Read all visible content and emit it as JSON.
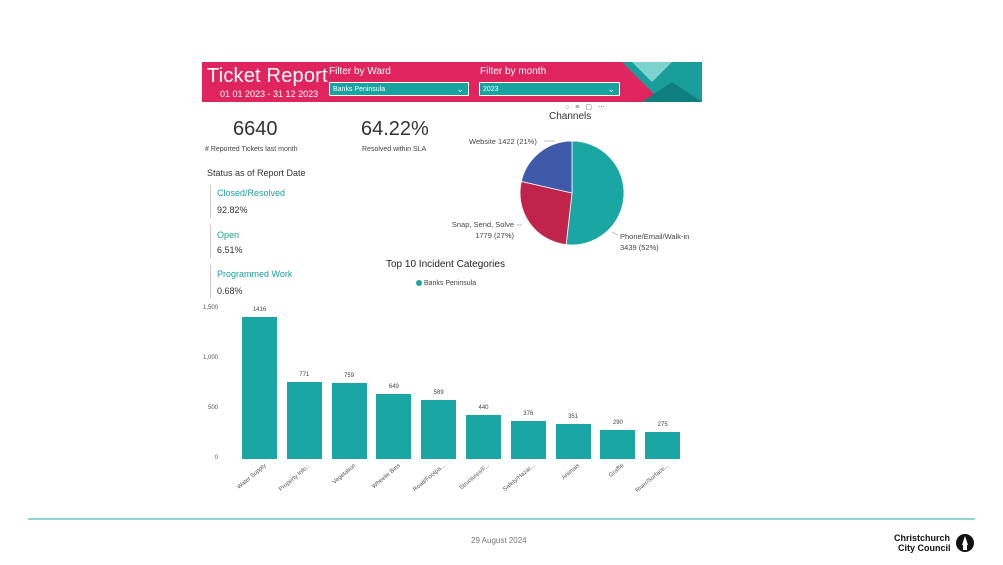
{
  "header": {
    "title": "Ticket Report",
    "date_range": "01 01 2023 - 31 12 2023",
    "filter_ward_label": "Filter by Ward",
    "filter_ward_value": "Banks Peninsula",
    "filter_month_label": "Filter by month",
    "filter_month_value": "2023"
  },
  "kpis": {
    "reported": {
      "value": "6640",
      "caption": "# Reported Tickets last month"
    },
    "sla": {
      "value": "64.22%",
      "caption": "Resolved within SLA"
    }
  },
  "status": {
    "heading": "Status as of Report Date",
    "items": [
      {
        "label": "Closed/Resolved",
        "value": "92.82%"
      },
      {
        "label": "Open",
        "value": "6.51%"
      },
      {
        "label": "Programmed Work",
        "value": "0.68%"
      }
    ]
  },
  "channels": {
    "title": "Channels",
    "labels": {
      "website": "Website 1422 (21%)",
      "snap_line1": "Snap, Send, Solve",
      "snap_line2": "1779 (27%)",
      "phone_line1": "Phone/Email/Walk-in",
      "phone_line2": "3439 (52%)"
    }
  },
  "chart_data": [
    {
      "type": "pie",
      "title": "Channels",
      "slices": [
        {
          "name": "Phone/Email/Walk-in",
          "value": 3439,
          "percent": 52,
          "color": "#1aa6a3"
        },
        {
          "name": "Snap, Send, Solve",
          "value": 1779,
          "percent": 27,
          "color": "#c0244a"
        },
        {
          "name": "Website",
          "value": 1422,
          "percent": 21,
          "color": "#3f5aa8"
        }
      ]
    },
    {
      "type": "bar",
      "title": "Top 10 Incident Categories",
      "legend": "Banks Peninsula",
      "categories": [
        "Water Supply",
        "Property Info...",
        "Vegetation",
        "Wheelie Bins",
        "Road/Footpa...",
        "Structures/F...",
        "Safety/Hazar...",
        "Animals",
        "Graffiti",
        "River/Surface..."
      ],
      "series": [
        {
          "name": "Banks Peninsula",
          "values": [
            1416,
            771,
            759,
            649,
            589,
            440,
            376,
            351,
            290,
            275
          ],
          "color": "#1aa6a3"
        }
      ],
      "yticks": [
        "1,500",
        "1,000",
        "500",
        "0"
      ],
      "ylim": [
        0,
        1500
      ],
      "legend_position": "top-center",
      "grid": false
    }
  ],
  "footer": {
    "date": "29 August 2024",
    "logo_line1": "Christchurch",
    "logo_line2": "City Council"
  },
  "colors": {
    "brand": "#e0245e",
    "accent": "#1aa6a3"
  }
}
